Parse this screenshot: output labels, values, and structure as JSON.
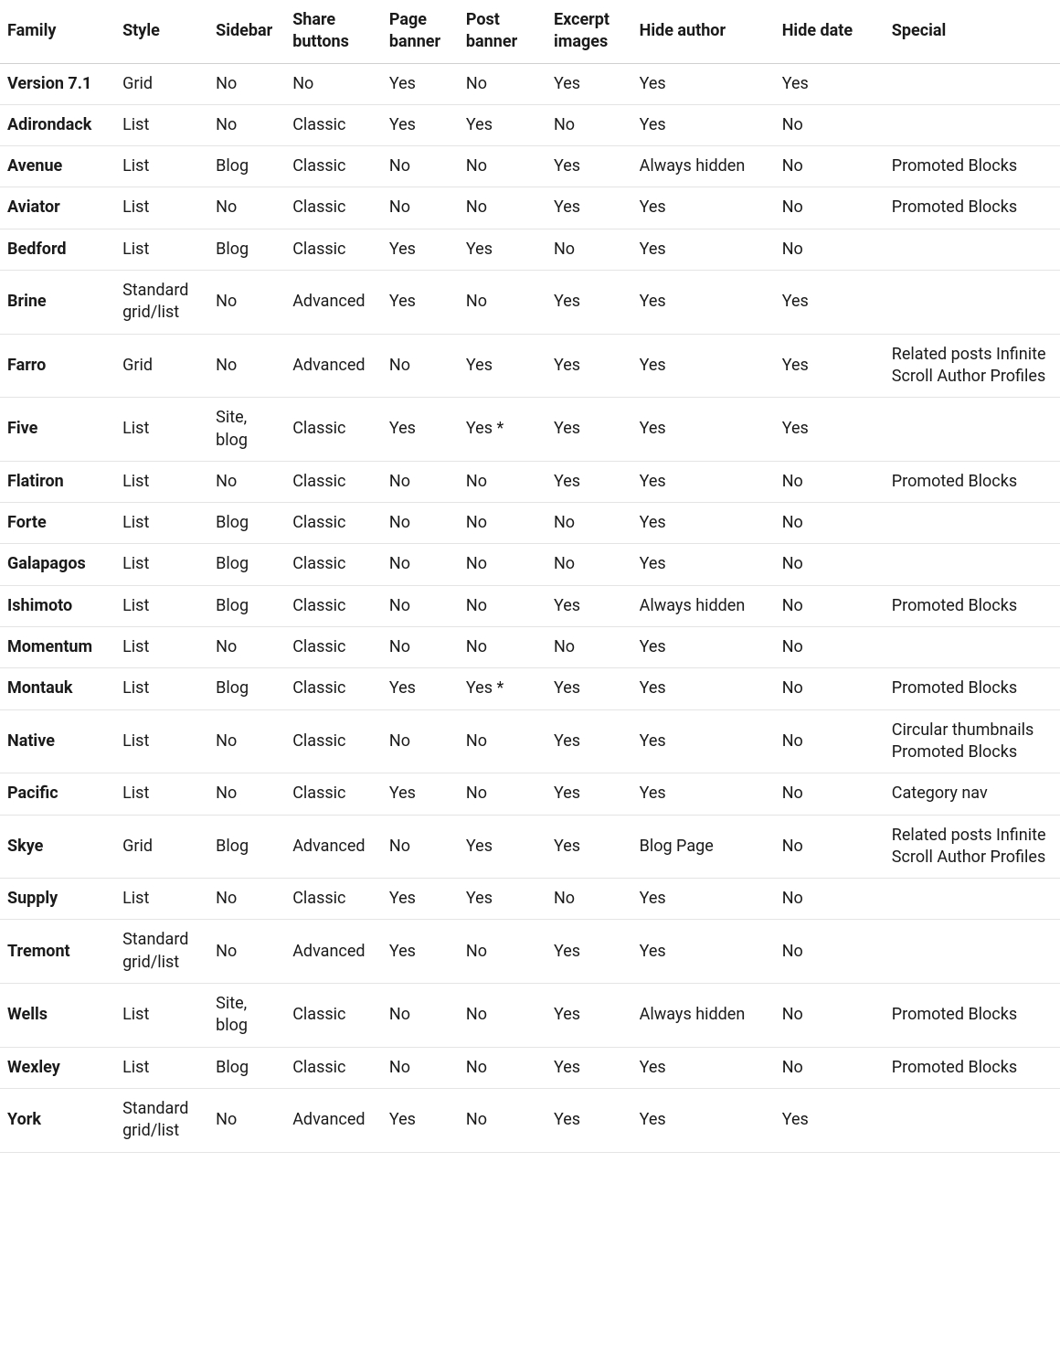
{
  "table": {
    "columns": [
      {
        "key": "family",
        "label": "Family",
        "class": "c-family"
      },
      {
        "key": "style",
        "label": "Style",
        "class": "c-style"
      },
      {
        "key": "sidebar",
        "label": "Sidebar",
        "class": "c-sidebar"
      },
      {
        "key": "share_buttons",
        "label": "Share buttons",
        "class": "c-share"
      },
      {
        "key": "page_banner",
        "label": "Page banner",
        "class": "c-pageb"
      },
      {
        "key": "post_banner",
        "label": "Post banner",
        "class": "c-postb"
      },
      {
        "key": "excerpt_images",
        "label": "Excerpt images",
        "class": "c-excerpt"
      },
      {
        "key": "hide_author",
        "label": "Hide author",
        "class": "c-hideauth"
      },
      {
        "key": "hide_date",
        "label": "Hide date",
        "class": "c-hidedate"
      },
      {
        "key": "special",
        "label": "Special",
        "class": "c-special"
      }
    ],
    "rows": [
      {
        "family": "Version 7.1",
        "style": "Grid",
        "sidebar": "No",
        "share_buttons": "No",
        "page_banner": "Yes",
        "post_banner": "No",
        "excerpt_images": "Yes",
        "hide_author": "Yes",
        "hide_date": "Yes",
        "special": ""
      },
      {
        "family": "Adirondack",
        "style": "List",
        "sidebar": "No",
        "share_buttons": "Classic",
        "page_banner": "Yes",
        "post_banner": "Yes",
        "excerpt_images": "No",
        "hide_author": "Yes",
        "hide_date": "No",
        "special": ""
      },
      {
        "family": "Avenue",
        "style": "List",
        "sidebar": "Blog",
        "share_buttons": "Classic",
        "page_banner": "No",
        "post_banner": "No",
        "excerpt_images": "Yes",
        "hide_author": "Always hidden",
        "hide_date": "No",
        "special": "Promoted Blocks"
      },
      {
        "family": "Aviator",
        "style": "List",
        "sidebar": "No",
        "share_buttons": "Classic",
        "page_banner": "No",
        "post_banner": "No",
        "excerpt_images": "Yes",
        "hide_author": "Yes",
        "hide_date": "No",
        "special": "Promoted Blocks"
      },
      {
        "family": "Bedford",
        "style": "List",
        "sidebar": "Blog",
        "share_buttons": "Classic",
        "page_banner": "Yes",
        "post_banner": "Yes",
        "excerpt_images": "No",
        "hide_author": "Yes",
        "hide_date": "No",
        "special": ""
      },
      {
        "family": "Brine",
        "style": "Standard grid/list",
        "sidebar": "No",
        "share_buttons": "Advanced",
        "page_banner": "Yes",
        "post_banner": "No",
        "excerpt_images": "Yes",
        "hide_author": "Yes",
        "hide_date": "Yes",
        "special": ""
      },
      {
        "family": "Farro",
        "style": "Grid",
        "sidebar": "No",
        "share_buttons": "Advanced",
        "page_banner": "No",
        "post_banner": "Yes",
        "excerpt_images": "Yes",
        "hide_author": "Yes",
        "hide_date": "Yes",
        "special": "Related posts Infinite Scroll Author Profiles"
      },
      {
        "family": "Five",
        "style": "List",
        "sidebar": "Site, blog",
        "share_buttons": "Classic",
        "page_banner": "Yes",
        "post_banner": "Yes *",
        "excerpt_images": "Yes",
        "hide_author": "Yes",
        "hide_date": "Yes",
        "special": ""
      },
      {
        "family": "Flatiron",
        "style": "List",
        "sidebar": "No",
        "share_buttons": "Classic",
        "page_banner": "No",
        "post_banner": "No",
        "excerpt_images": "Yes",
        "hide_author": "Yes",
        "hide_date": "No",
        "special": "Promoted Blocks"
      },
      {
        "family": "Forte",
        "style": "List",
        "sidebar": "Blog",
        "share_buttons": "Classic",
        "page_banner": "No",
        "post_banner": "No",
        "excerpt_images": "No",
        "hide_author": "Yes",
        "hide_date": "No",
        "special": ""
      },
      {
        "family": "Galapagos",
        "style": "List",
        "sidebar": "Blog",
        "share_buttons": "Classic",
        "page_banner": "No",
        "post_banner": "No",
        "excerpt_images": "No",
        "hide_author": "Yes",
        "hide_date": "No",
        "special": ""
      },
      {
        "family": "Ishimoto",
        "style": "List",
        "sidebar": "Blog",
        "share_buttons": "Classic",
        "page_banner": "No",
        "post_banner": "No",
        "excerpt_images": "Yes",
        "hide_author": "Always hidden",
        "hide_date": "No",
        "special": "Promoted Blocks"
      },
      {
        "family": "Momentum",
        "style": "List",
        "sidebar": "No",
        "share_buttons": "Classic",
        "page_banner": "No",
        "post_banner": "No",
        "excerpt_images": "No",
        "hide_author": "Yes",
        "hide_date": "No",
        "special": ""
      },
      {
        "family": "Montauk",
        "style": "List",
        "sidebar": "Blog",
        "share_buttons": "Classic",
        "page_banner": "Yes",
        "post_banner": "Yes *",
        "excerpt_images": "Yes",
        "hide_author": "Yes",
        "hide_date": "No",
        "special": "Promoted Blocks"
      },
      {
        "family": "Native",
        "style": "List",
        "sidebar": "No",
        "share_buttons": "Classic",
        "page_banner": "No",
        "post_banner": "No",
        "excerpt_images": "Yes",
        "hide_author": "Yes",
        "hide_date": "No",
        "special": "Circular thumbnails Promoted Blocks"
      },
      {
        "family": "Pacific",
        "style": "List",
        "sidebar": "No",
        "share_buttons": "Classic",
        "page_banner": "Yes",
        "post_banner": "No",
        "excerpt_images": "Yes",
        "hide_author": "Yes",
        "hide_date": "No",
        "special": "Category nav"
      },
      {
        "family": "Skye",
        "style": "Grid",
        "sidebar": "Blog",
        "share_buttons": "Advanced",
        "page_banner": "No",
        "post_banner": "Yes",
        "excerpt_images": "Yes",
        "hide_author": "Blog Page",
        "hide_date": "No",
        "special": "Related posts Infinite Scroll Author Profiles"
      },
      {
        "family": "Supply",
        "style": "List",
        "sidebar": "No",
        "share_buttons": "Classic",
        "page_banner": "Yes",
        "post_banner": "Yes",
        "excerpt_images": "No",
        "hide_author": "Yes",
        "hide_date": "No",
        "special": ""
      },
      {
        "family": "Tremont",
        "style": "Standard grid/list",
        "sidebar": "No",
        "share_buttons": "Advanced",
        "page_banner": "Yes",
        "post_banner": "No",
        "excerpt_images": "Yes",
        "hide_author": "Yes",
        "hide_date": "No",
        "special": ""
      },
      {
        "family": "Wells",
        "style": "List",
        "sidebar": "Site, blog",
        "share_buttons": "Classic",
        "page_banner": "No",
        "post_banner": "No",
        "excerpt_images": "Yes",
        "hide_author": "Always hidden",
        "hide_date": "No",
        "special": "Promoted Blocks"
      },
      {
        "family": "Wexley",
        "style": "List",
        "sidebar": "Blog",
        "share_buttons": "Classic",
        "page_banner": "No",
        "post_banner": "No",
        "excerpt_images": "Yes",
        "hide_author": "Yes",
        "hide_date": "No",
        "special": "Promoted Blocks"
      },
      {
        "family": "York",
        "style": "Standard grid/list",
        "sidebar": "No",
        "share_buttons": "Advanced",
        "page_banner": "Yes",
        "post_banner": "No",
        "excerpt_images": "Yes",
        "hide_author": "Yes",
        "hide_date": "Yes",
        "special": ""
      }
    ],
    "border_color": "#e4e4e4",
    "header_border_color": "#d0d0d0",
    "text_color": "#1a1a1a",
    "background_color": "#ffffff",
    "font_size_pt": 13,
    "header_font_weight": 700,
    "family_font_weight": 700
  }
}
